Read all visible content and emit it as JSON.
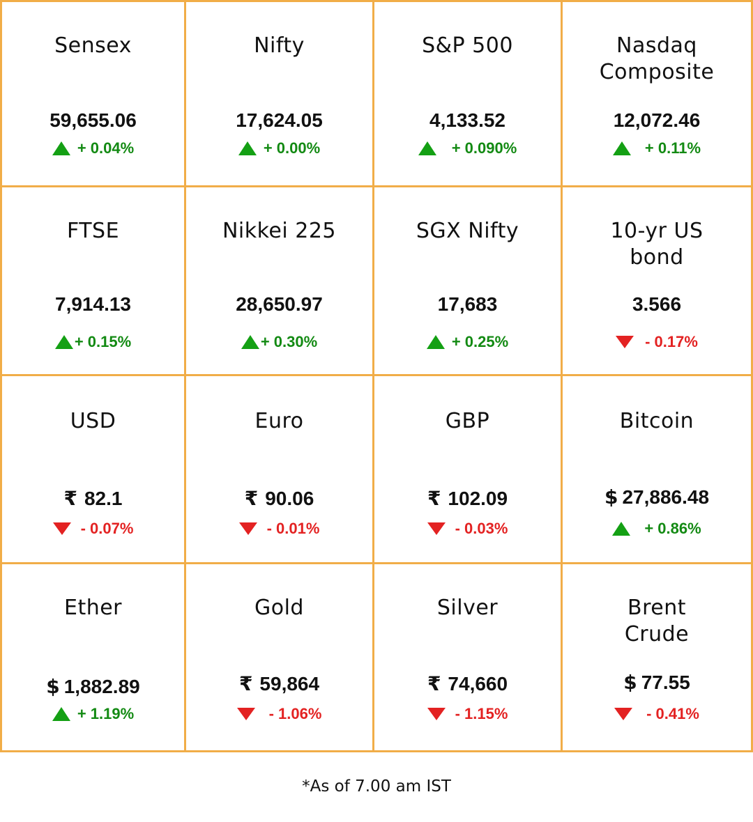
{
  "colors": {
    "border": "#f1ad48",
    "up": "#138a13",
    "down": "#e32222"
  },
  "rows": [
    [
      {
        "name": "Sensex",
        "value": "59,655.06",
        "currency": "",
        "direction": "up",
        "change": "+ 0.04%"
      },
      {
        "name": "Nifty",
        "value": "17,624.05",
        "currency": "",
        "direction": "up",
        "change": "+ 0.00%"
      },
      {
        "name": "S&P 500",
        "value": "4,133.52",
        "currency": "",
        "direction": "up",
        "change": "+ 0.090%"
      },
      {
        "name": "Nasdaq Composite",
        "value": "12,072.46",
        "currency": "",
        "direction": "up",
        "change": "+ 0.11%"
      }
    ],
    [
      {
        "name": "FTSE",
        "value": "7,914.13",
        "currency": "",
        "direction": "up",
        "change": "+ 0.15%"
      },
      {
        "name": "Nikkei 225",
        "value": "28,650.97",
        "currency": "",
        "direction": "up",
        "change": "+ 0.30%"
      },
      {
        "name": "SGX Nifty",
        "value": "17,683",
        "currency": "",
        "direction": "up",
        "change": "+ 0.25%"
      },
      {
        "name": "10-yr US bond",
        "value": "3.566",
        "currency": "",
        "direction": "down",
        "change": "- 0.17%"
      }
    ],
    [
      {
        "name": "USD",
        "value": "82.1",
        "currency": "₹",
        "direction": "down",
        "change": "- 0.07%"
      },
      {
        "name": "Euro",
        "value": "90.06",
        "currency": "₹",
        "direction": "down",
        "change": "- 0.01%"
      },
      {
        "name": "GBP",
        "value": "102.09",
        "currency": "₹",
        "direction": "down",
        "change": "- 0.03%"
      },
      {
        "name": "Bitcoin",
        "value": "27,886.48",
        "currency": "$",
        "direction": "up",
        "change": "+ 0.86%"
      }
    ],
    [
      {
        "name": "Ether",
        "value": "1,882.89",
        "currency": "$",
        "direction": "up",
        "change": "+ 1.19%"
      },
      {
        "name": "Gold",
        "value": "59,864",
        "currency": "₹",
        "direction": "down",
        "change": "- 1.06%"
      },
      {
        "name": "Silver",
        "value": "74,660",
        "currency": "₹",
        "direction": "down",
        "change": "- 1.15%"
      },
      {
        "name": "Brent Crude",
        "value": "77.55",
        "currency": "$",
        "direction": "down",
        "change": "- 0.41%"
      }
    ]
  ],
  "footnote": "*As of 7.00 am IST"
}
